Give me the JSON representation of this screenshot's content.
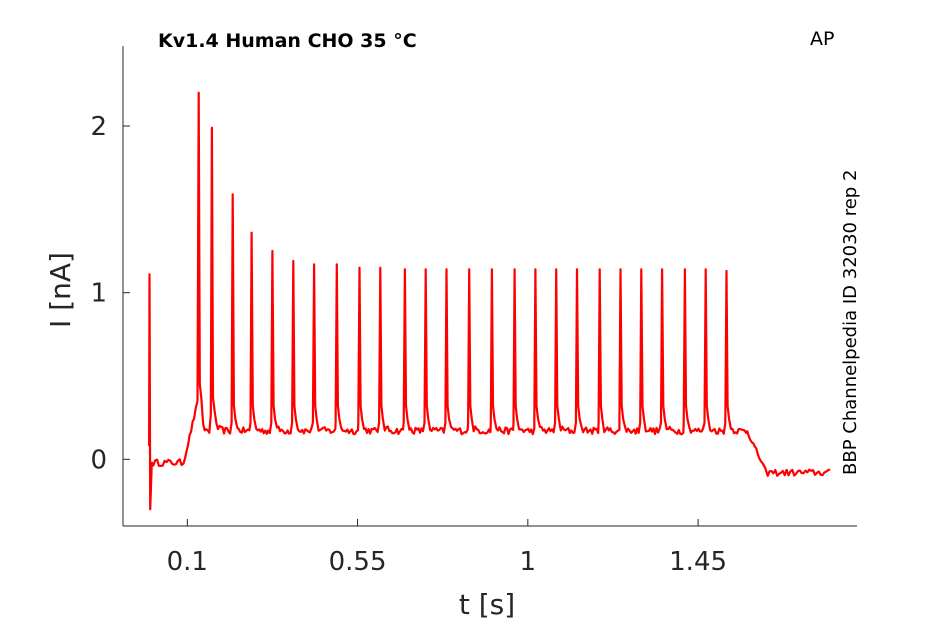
{
  "chart_data": {
    "type": "line",
    "title": "Kv1.4  Human  CHO  35 °C",
    "corner_label": "AP",
    "side_label": "BBP Channelpedia ID 32030 rep 2",
    "xlabel": "t [s]",
    "ylabel": "I [nA]",
    "xlim": [
      -0.07,
      1.87
    ],
    "ylim": [
      -0.4,
      2.48
    ],
    "x_ticks": [
      0.1,
      0.55,
      1,
      1.45
    ],
    "x_tick_labels": [
      "0.1",
      "0.55",
      "1",
      "1.45"
    ],
    "y_ticks": [
      0,
      1,
      2
    ],
    "y_tick_labels": [
      "0",
      "1",
      "2"
    ],
    "grid": false,
    "series": [
      {
        "color": "#ff0000",
        "baseline_pre": -0.02,
        "baseline_during": 0.17,
        "baseline_post": -0.08,
        "artifact": {
          "t": 0.0,
          "peak": 1.11,
          "trough": -0.3
        },
        "stim_onset": 0.09,
        "stim_offset": 1.58,
        "spikes": [
          {
            "t": 0.13,
            "peak": 2.2
          },
          {
            "t": 0.165,
            "peak": 1.99
          },
          {
            "t": 0.22,
            "peak": 1.59
          },
          {
            "t": 0.27,
            "peak": 1.36
          },
          {
            "t": 0.325,
            "peak": 1.25
          },
          {
            "t": 0.38,
            "peak": 1.19
          },
          {
            "t": 0.435,
            "peak": 1.17
          },
          {
            "t": 0.495,
            "peak": 1.17
          },
          {
            "t": 0.555,
            "peak": 1.15
          },
          {
            "t": 0.61,
            "peak": 1.15
          },
          {
            "t": 0.675,
            "peak": 1.14
          },
          {
            "t": 0.73,
            "peak": 1.14
          },
          {
            "t": 0.785,
            "peak": 1.14
          },
          {
            "t": 0.845,
            "peak": 1.14
          },
          {
            "t": 0.905,
            "peak": 1.14
          },
          {
            "t": 0.965,
            "peak": 1.14
          },
          {
            "t": 1.02,
            "peak": 1.14
          },
          {
            "t": 1.075,
            "peak": 1.14
          },
          {
            "t": 1.13,
            "peak": 1.14
          },
          {
            "t": 1.19,
            "peak": 1.14
          },
          {
            "t": 1.245,
            "peak": 1.14
          },
          {
            "t": 1.3,
            "peak": 1.14
          },
          {
            "t": 1.355,
            "peak": 1.14
          },
          {
            "t": 1.415,
            "peak": 1.14
          },
          {
            "t": 1.47,
            "peak": 1.14
          },
          {
            "t": 1.525,
            "peak": 1.13
          }
        ],
        "t_end": 1.8
      }
    ]
  }
}
